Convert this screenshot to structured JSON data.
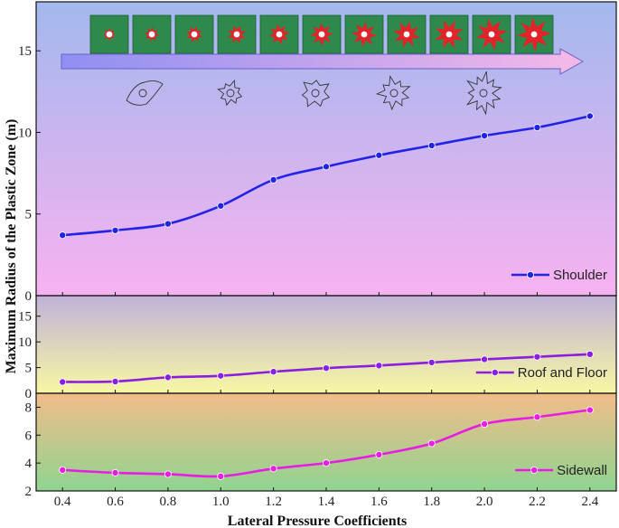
{
  "chart_data": {
    "type": "line",
    "xlabel": "Lateral Pressure Coefficients",
    "ylabel": "Maximum Radius of the Plastic Zone  (m)",
    "x": [
      0.4,
      0.6,
      0.8,
      1.0,
      1.2,
      1.4,
      1.6,
      1.8,
      2.0,
      2.2,
      2.4
    ],
    "x_ticks": [
      "0.4",
      "0.6",
      "0.8",
      "1.0",
      "1.2",
      "1.4",
      "1.6",
      "1.8",
      "2.0",
      "2.2",
      "2.4"
    ],
    "panels": [
      {
        "series": [
          {
            "name": "Shoulder",
            "color": "#2323e6",
            "values": [
              3.7,
              4.0,
              4.4,
              5.5,
              7.1,
              7.9,
              8.6,
              9.2,
              9.8,
              10.3,
              11.0
            ]
          }
        ],
        "ylim": [
          0,
          18
        ],
        "y_ticks": [
          "0",
          "5",
          "10",
          "15"
        ],
        "legend": "bottom-right",
        "background": [
          "#a3b8ee",
          "#f7b2f0"
        ]
      },
      {
        "series": [
          {
            "name": "Roof and Floor",
            "color": "#8a1fe0",
            "values": [
              2.2,
              2.3,
              3.1,
              3.4,
              4.2,
              4.9,
              5.4,
              6.0,
              6.6,
              7.1,
              7.6
            ]
          }
        ],
        "ylim": [
          0,
          19
        ],
        "y_ticks": [
          "0",
          "5",
          "10",
          "15"
        ],
        "legend": "bottom-right",
        "background": [
          "#bfb2d8",
          "#f8f7a4"
        ]
      },
      {
        "series": [
          {
            "name": "Sidewall",
            "color": "#e81ce3",
            "values": [
              3.5,
              3.3,
              3.2,
              3.05,
              3.6,
              4.0,
              4.6,
              5.4,
              6.8,
              7.3,
              7.8
            ]
          }
        ],
        "ylim": [
          2,
          9
        ],
        "y_ticks": [
          "2",
          "4",
          "6",
          "8"
        ],
        "legend": "bottom-right",
        "background": [
          "#f2bc8a",
          "#8fd490"
        ]
      }
    ],
    "plastic_zone_images": 11,
    "zone_outline_sketches": [
      "cell-shape",
      "gear-shape",
      "cross-shape",
      "star-shape",
      "spiky-shape"
    ]
  }
}
